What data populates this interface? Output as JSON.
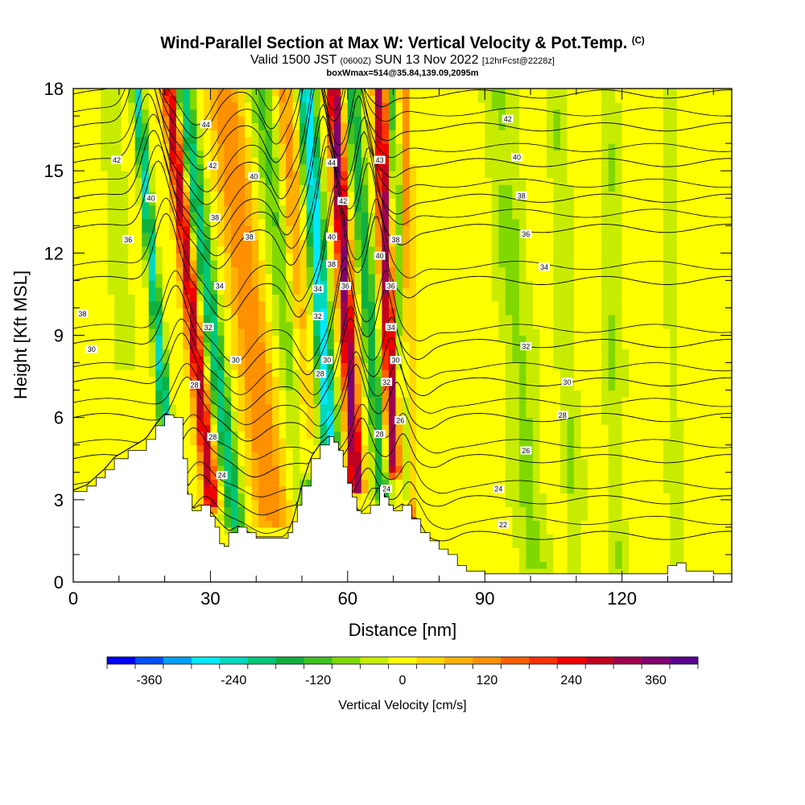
{
  "title": {
    "line1": "Wind-Parallel Section at Max W: Vertical Velocity & Pot.Temp.",
    "line1_suffix": "(C)",
    "line2_main": "Valid 1500 JST",
    "line2_small1": "(0600Z)",
    "line2_mid": "SUN 13 Nov 2022",
    "line2_small2": "[12hrFcst@2228z]",
    "line3": "boxWmax=514@35.84,139.09,2095m"
  },
  "chart_data": {
    "type": "heatmap",
    "xlabel": "Distance [nm]",
    "ylabel": "Height [Kft MSL]",
    "xlim": [
      0,
      144
    ],
    "ylim": [
      0,
      18
    ],
    "x_ticks": [
      "0",
      "30",
      "60",
      "90",
      "120"
    ],
    "x_tick_values": [
      0,
      30,
      60,
      90,
      120
    ],
    "y_ticks": [
      "0",
      "3",
      "6",
      "9",
      "12",
      "15",
      "18"
    ],
    "y_tick_values": [
      0,
      3,
      6,
      9,
      12,
      15,
      18
    ],
    "colorbar": {
      "label": "Vertical Velocity [cm/s]",
      "tick_labels": [
        "-360",
        "-240",
        "-120",
        "0",
        "120",
        "240",
        "360"
      ],
      "tick_values": [
        -360,
        -240,
        -120,
        0,
        120,
        240,
        360
      ],
      "range": [
        -420,
        420
      ],
      "colors": [
        "#0000ff",
        "#0050ff",
        "#00a0ff",
        "#00e8ff",
        "#00d8c0",
        "#00c878",
        "#10b040",
        "#40c020",
        "#80d800",
        "#c8ec00",
        "#ffff00",
        "#ffd800",
        "#ffb000",
        "#ff9000",
        "#ff6000",
        "#ff3000",
        "#ee0000",
        "#c00020",
        "#a00050",
        "#800070",
        "#5a0090"
      ]
    },
    "terrain": [
      [
        0,
        3.3
      ],
      [
        3,
        3.5
      ],
      [
        5,
        3.8
      ],
      [
        7,
        4.1
      ],
      [
        9,
        4.5
      ],
      [
        12,
        4.8
      ],
      [
        16,
        5.2
      ],
      [
        18,
        5.7
      ],
      [
        20,
        6.1
      ],
      [
        22,
        6.0
      ],
      [
        24,
        4.5
      ],
      [
        25,
        3.2
      ],
      [
        26,
        2.6
      ],
      [
        28,
        2.8
      ],
      [
        30,
        2.4
      ],
      [
        31,
        2.0
      ],
      [
        32,
        1.4
      ],
      [
        33,
        1.3
      ],
      [
        34,
        1.8
      ],
      [
        36,
        2.0
      ],
      [
        38,
        1.8
      ],
      [
        40,
        1.6
      ],
      [
        43,
        1.6
      ],
      [
        46,
        1.6
      ],
      [
        47,
        1.8
      ],
      [
        48,
        2.2
      ],
      [
        49,
        2.8
      ],
      [
        50,
        3.5
      ],
      [
        52,
        4.5
      ],
      [
        54,
        5.0
      ],
      [
        56,
        5.3
      ],
      [
        57,
        5.1
      ],
      [
        58,
        4.8
      ],
      [
        59,
        4.2
      ],
      [
        60,
        3.6
      ],
      [
        61,
        3.1
      ],
      [
        62,
        2.6
      ],
      [
        63,
        2.5
      ],
      [
        65,
        2.8
      ],
      [
        67,
        3.5
      ],
      [
        68,
        3.1
      ],
      [
        69,
        2.8
      ],
      [
        70,
        2.6
      ],
      [
        72,
        2.8
      ],
      [
        74,
        2.3
      ],
      [
        76,
        1.8
      ],
      [
        78,
        1.5
      ],
      [
        80,
        1.2
      ],
      [
        82,
        1.0
      ],
      [
        84,
        0.6
      ],
      [
        86,
        0.4
      ],
      [
        90,
        0.3
      ],
      [
        100,
        0.3
      ],
      [
        110,
        0.3
      ],
      [
        120,
        0.3
      ],
      [
        128,
        0.3
      ],
      [
        130,
        0.6
      ],
      [
        132,
        0.7
      ],
      [
        134,
        0.4
      ],
      [
        138,
        0.4
      ],
      [
        140,
        0.3
      ],
      [
        144,
        0.3
      ]
    ],
    "updrafts": [
      {
        "x0": 21,
        "x1": 32,
        "ymin": 2.8,
        "w": 300,
        "width": 1.6
      },
      {
        "x0": 33,
        "x1": 45,
        "ymin": 2.2,
        "w": 140,
        "width": 3.5
      },
      {
        "x0": 57,
        "x1": 63,
        "ymin": 3.4,
        "w": 360,
        "width": 1.5
      },
      {
        "x0": 67,
        "x1": 71,
        "ymin": 4.0,
        "w": 330,
        "width": 1.4
      },
      {
        "x0": 72,
        "x1": 74,
        "ymin": 2.0,
        "w": 140,
        "width": 1.4
      },
      {
        "x0": 46,
        "x1": 53,
        "ymin": 4.0,
        "w": 120,
        "width": 2.2
      }
    ],
    "downdrafts": [
      {
        "x0": 14,
        "x1": 23,
        "ymin": 4.5,
        "w": -240,
        "width": 1.3
      },
      {
        "x0": 24,
        "x1": 37,
        "ymin": 2.0,
        "w": -210,
        "width": 2.0
      },
      {
        "x0": 51,
        "x1": 58,
        "ymin": 5.0,
        "w": -300,
        "width": 1.8
      },
      {
        "x0": 61,
        "x1": 69,
        "ymin": 3.0,
        "w": -180,
        "width": 1.6
      },
      {
        "x0": 70,
        "x1": 74,
        "ymin": 3.0,
        "w": -150,
        "width": 1.4
      },
      {
        "x0": 41,
        "x1": 54,
        "ymin": 2.0,
        "w": -110,
        "width": 3.0
      },
      {
        "x0": 8,
        "x1": 14,
        "ymin": 8.0,
        "w": -70,
        "width": 2.5
      },
      {
        "x0": 93,
        "x1": 101,
        "ymin": 0.5,
        "w": -70,
        "width": 3.5
      },
      {
        "x0": 106,
        "x1": 110,
        "ymin": 0.5,
        "w": -60,
        "width": 2.0
      },
      {
        "x0": 117,
        "x1": 119,
        "ymin": 0.5,
        "w": -60,
        "width": 2.0
      },
      {
        "x0": 130,
        "x1": 132,
        "ymin": 0.5,
        "w": -50,
        "width": 1.5
      }
    ],
    "isentropes": [
      {
        "theta": 22,
        "base": 1.7
      },
      {
        "theta": 24,
        "base": 3.0
      },
      {
        "theta": 26,
        "base": 4.5
      },
      {
        "theta": 28,
        "base": 6.0
      },
      {
        "theta": 30,
        "base": 7.3
      },
      {
        "theta": 32,
        "base": 8.7
      },
      {
        "theta": 34,
        "base": 11.0
      },
      {
        "theta": 36,
        "base": 12.9
      },
      {
        "theta": 38,
        "base": 14.0
      },
      {
        "theta": 40,
        "base": 15.3
      },
      {
        "theta": 42,
        "base": 16.6
      },
      {
        "theta": 44,
        "base": 17.8
      }
    ],
    "contour_labels": [
      {
        "text": "42",
        "x": 95,
        "y": 16.9
      },
      {
        "text": "40",
        "x": 97,
        "y": 15.5
      },
      {
        "text": "38",
        "x": 98,
        "y": 14.1
      },
      {
        "text": "36",
        "x": 99,
        "y": 12.7
      },
      {
        "text": "34",
        "x": 103,
        "y": 11.5
      },
      {
        "text": "32",
        "x": 99,
        "y": 8.6
      },
      {
        "text": "30",
        "x": 108,
        "y": 7.3
      },
      {
        "text": "28",
        "x": 107,
        "y": 6.1
      },
      {
        "text": "26",
        "x": 99,
        "y": 4.8
      },
      {
        "text": "24",
        "x": 93,
        "y": 3.4
      },
      {
        "text": "22",
        "x": 94,
        "y": 2.1
      },
      {
        "text": "42",
        "x": 9.5,
        "y": 15.4
      },
      {
        "text": "40",
        "x": 17,
        "y": 14.0
      },
      {
        "text": "36",
        "x": 12,
        "y": 12.5
      },
      {
        "text": "38",
        "x": 2,
        "y": 9.8
      },
      {
        "text": "30",
        "x": 4,
        "y": 8.5
      },
      {
        "text": "44",
        "x": 29,
        "y": 16.7
      },
      {
        "text": "42",
        "x": 30.5,
        "y": 15.2
      },
      {
        "text": "40",
        "x": 39.5,
        "y": 14.8
      },
      {
        "text": "38",
        "x": 31,
        "y": 13.3
      },
      {
        "text": "38",
        "x": 38.5,
        "y": 12.6
      },
      {
        "text": "34",
        "x": 32,
        "y": 10.8
      },
      {
        "text": "32",
        "x": 29.5,
        "y": 9.3
      },
      {
        "text": "30",
        "x": 35.5,
        "y": 8.1
      },
      {
        "text": "28",
        "x": 26.5,
        "y": 7.2
      },
      {
        "text": "28",
        "x": 30.5,
        "y": 5.3
      },
      {
        "text": "24",
        "x": 32.5,
        "y": 3.9
      },
      {
        "text": "44",
        "x": 56.5,
        "y": 15.3
      },
      {
        "text": "42",
        "x": 59,
        "y": 13.9
      },
      {
        "text": "40",
        "x": 56.5,
        "y": 12.6
      },
      {
        "text": "38",
        "x": 56.5,
        "y": 11.6
      },
      {
        "text": "36",
        "x": 59.5,
        "y": 10.8
      },
      {
        "text": "34",
        "x": 53.5,
        "y": 10.7
      },
      {
        "text": "32",
        "x": 53.5,
        "y": 9.7
      },
      {
        "text": "30",
        "x": 55.5,
        "y": 8.1
      },
      {
        "text": "28",
        "x": 54,
        "y": 7.6
      },
      {
        "text": "43",
        "x": 67,
        "y": 15.4
      },
      {
        "text": "40",
        "x": 67,
        "y": 11.9
      },
      {
        "text": "38",
        "x": 70.5,
        "y": 12.5
      },
      {
        "text": "36",
        "x": 69.5,
        "y": 10.8
      },
      {
        "text": "34",
        "x": 69.5,
        "y": 9.3
      },
      {
        "text": "30",
        "x": 70.5,
        "y": 8.1
      },
      {
        "text": "32",
        "x": 68.5,
        "y": 7.3
      },
      {
        "text": "26",
        "x": 71.5,
        "y": 5.9
      },
      {
        "text": "28",
        "x": 67,
        "y": 5.4
      },
      {
        "text": "24",
        "x": 68.5,
        "y": 3.4
      }
    ]
  }
}
